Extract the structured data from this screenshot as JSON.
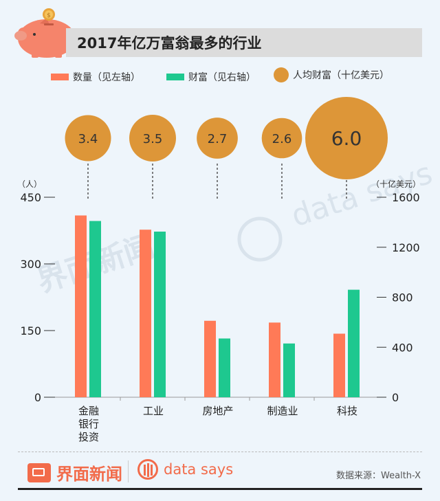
{
  "title": "2017年亿万富翁最多的行业",
  "legend": {
    "count": "数量（见左轴）",
    "wealth": "财富（见右轴）",
    "avg": "人均财富（十亿美元）"
  },
  "colors": {
    "count": "#ff7a57",
    "wealth": "#1ec88f",
    "avg": "#dd9638"
  },
  "chart_data": {
    "type": "bar",
    "categories": [
      "金融\n银行\n投资",
      "工业",
      "房地产",
      "制造业",
      "科技"
    ],
    "series": [
      {
        "name": "数量（见左轴）",
        "axis": "left",
        "values": [
          409,
          377,
          172,
          168,
          143
        ]
      },
      {
        "name": "财富（见右轴）",
        "axis": "right",
        "values": [
          1410,
          1325,
          470,
          430,
          860
        ]
      }
    ],
    "bubbles": {
      "name": "人均财富（十亿美元）",
      "values": [
        3.4,
        3.5,
        2.7,
        2.6,
        6.0
      ],
      "labels": [
        "3.4",
        "3.5",
        "2.7",
        "2.6",
        "6.0"
      ]
    },
    "left_axis": {
      "unit": "（人）",
      "ticks": [
        0,
        150,
        300,
        450
      ],
      "range": [
        0,
        450
      ]
    },
    "right_axis": {
      "unit": "（十亿美元）",
      "ticks": [
        0,
        400,
        800,
        1200,
        1600
      ],
      "range": [
        0,
        1600
      ]
    }
  },
  "footer": {
    "brand1": "界面新闻",
    "brand2": "data says",
    "source": "数据来源：Wealth-X"
  },
  "watermark": {
    "text1": "界面新闻",
    "text2": "data says"
  }
}
